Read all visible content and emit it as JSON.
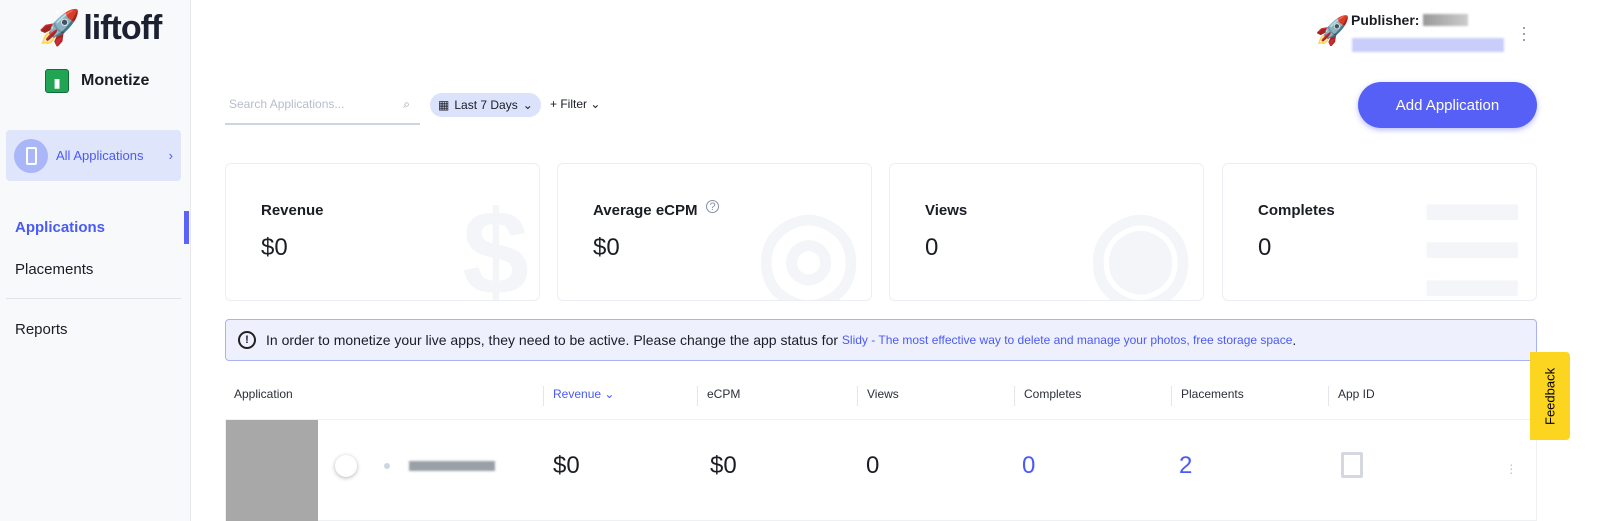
{
  "sidebar": {
    "logo": "liftoff",
    "product": "Monetize",
    "all_apps": "All Applications",
    "items": [
      {
        "label": "Applications"
      },
      {
        "label": "Placements"
      },
      {
        "label": "Reports"
      }
    ]
  },
  "toolbar": {
    "search_placeholder": "Search Applications...",
    "date_range": "Last 7 Days",
    "filter": "+ Filter",
    "add_label": "Add Application"
  },
  "header": {
    "publisher_label": "Publisher:"
  },
  "stats": [
    {
      "title": "Revenue",
      "value": "$0"
    },
    {
      "title": "Average eCPM",
      "value": "$0"
    },
    {
      "title": "Views",
      "value": "0"
    },
    {
      "title": "Completes",
      "value": "0"
    }
  ],
  "alert": {
    "text": "In order to monetize your live apps, they need to be active. Please change the app status for ",
    "link": "Slidy - The most effective way to delete and manage your photos, free storage space",
    "end": "."
  },
  "table": {
    "columns": [
      "Application",
      "Revenue",
      "eCPM",
      "Views",
      "Completes",
      "Placements",
      "App ID"
    ],
    "rows": [
      {
        "revenue": "$0",
        "ecpm": "$0",
        "views": "0",
        "completes": "0",
        "placements": "2"
      }
    ]
  },
  "feedback": "Feedback",
  "colors": {
    "accent": "#5660f7",
    "feedback": "#fbd51f"
  }
}
